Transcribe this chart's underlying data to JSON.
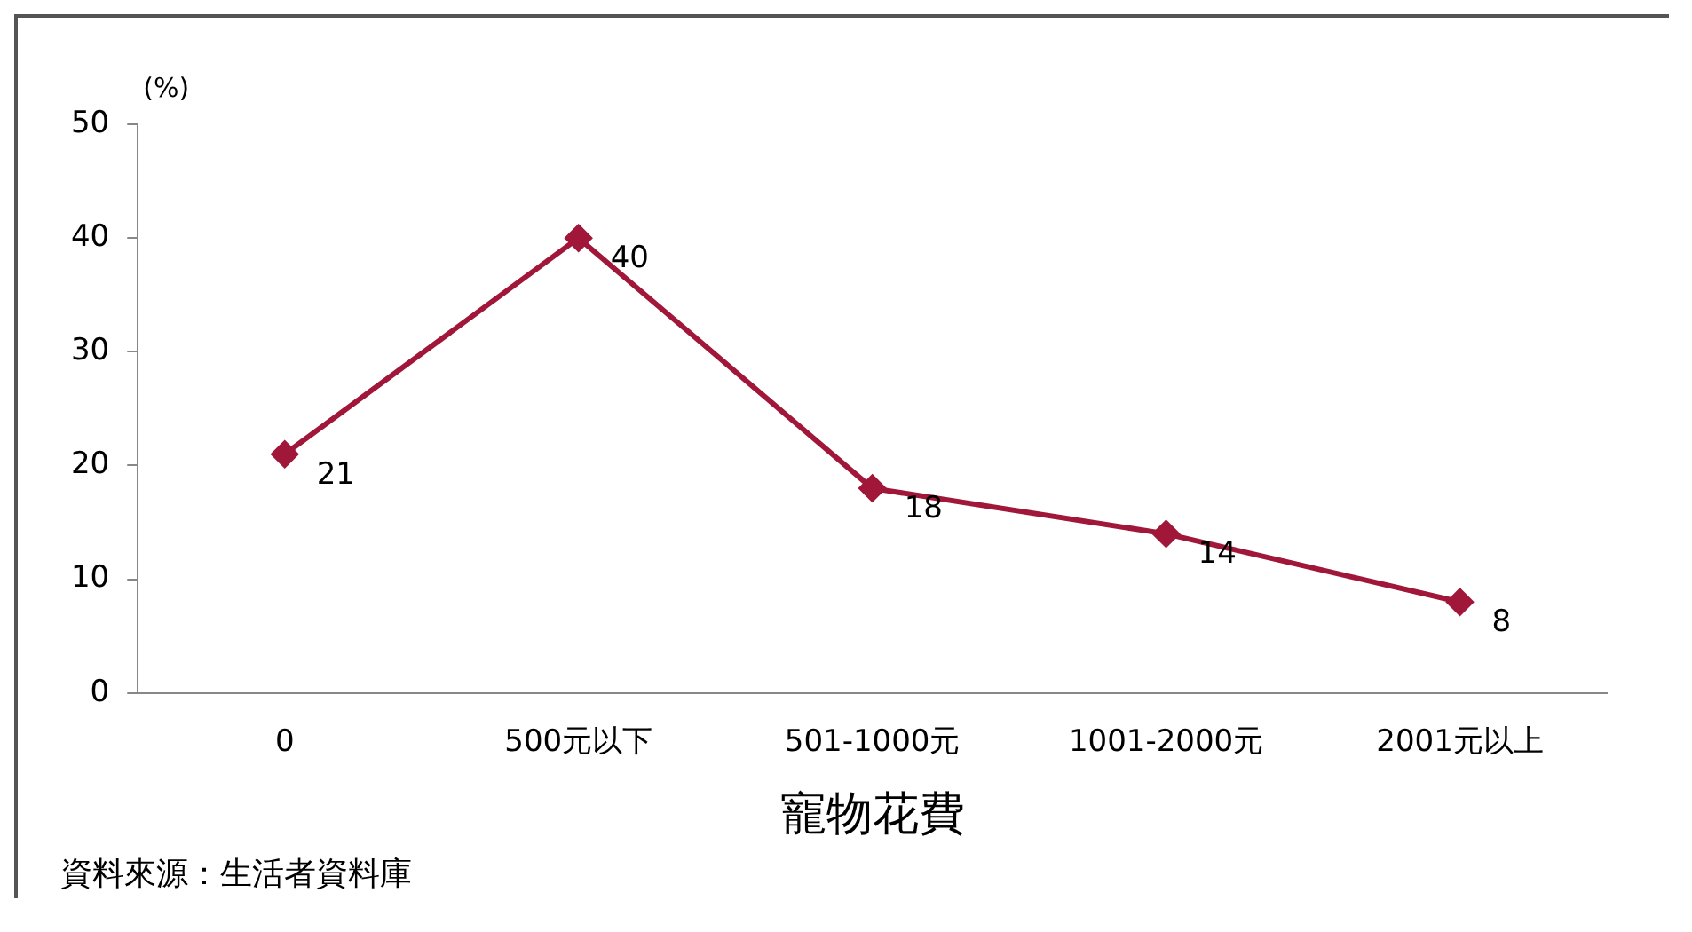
{
  "chart_data": {
    "type": "line",
    "ylabel": "(%)",
    "xlabel": "寵物花費",
    "categories": [
      "0",
      "500元以下",
      "501-1000元",
      "1001-2000元",
      "2001元以上"
    ],
    "series": [
      {
        "color": "#a0173a",
        "values": [
          21,
          40,
          18,
          14,
          8
        ]
      }
    ],
    "ylim": [
      0,
      50
    ],
    "yticks": [
      0,
      10,
      20,
      30,
      40,
      50
    ],
    "grid": false,
    "legend": false,
    "marker": "diamond",
    "line_style": "solid",
    "data_labels": true,
    "annotations": [
      "資料來源：生活者資料庫"
    ]
  }
}
